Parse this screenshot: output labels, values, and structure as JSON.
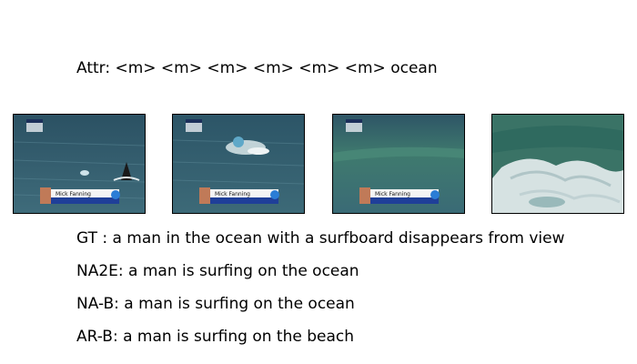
{
  "attr_line": "Attr: <m> <m> <m> <m> <m> <m> ocean",
  "captions": [
    {
      "id": "gt",
      "text": "GT  : a man in the ocean with a surfboard disappears from view"
    },
    {
      "id": "na2e",
      "text": "NA2E: a man is surfing on the ocean"
    },
    {
      "id": "nab",
      "text": "NA-B: a man is surfing on the ocean"
    },
    {
      "id": "arb",
      "text": "AR-B: a man is surfing on the beach"
    }
  ],
  "frames": [
    {
      "id": "frame-1",
      "lower_third_name": "Mick Fanning",
      "has_lower_third": true
    },
    {
      "id": "frame-2",
      "lower_third_name": "Mick Fanning",
      "has_lower_third": true
    },
    {
      "id": "frame-3",
      "lower_third_name": "Mick Fanning",
      "has_lower_third": true
    },
    {
      "id": "frame-4",
      "has_lower_third": false
    }
  ],
  "colors": {
    "ocean_dark": "#2f5566",
    "ocean_mid": "#3d6b7c",
    "foam": "#e8eef0",
    "wave_green": "#3f7a6e",
    "banner_white": "#f4f4f4",
    "banner_blue": "#1f3f99"
  }
}
